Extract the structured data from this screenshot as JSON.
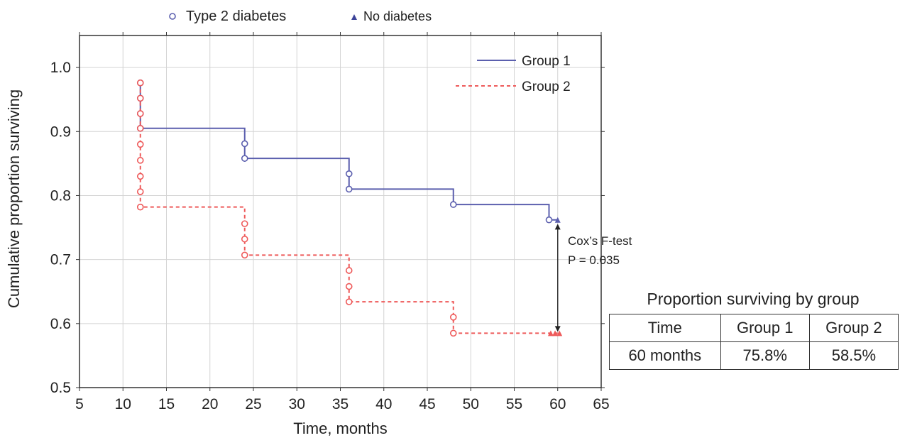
{
  "chart_data": {
    "type": "line",
    "subtype": "kaplan-meier step",
    "xlabel": "Time, months",
    "ylabel": "Cumulative proportion surviving",
    "xlim": [
      5,
      65
    ],
    "ylim": [
      0.5,
      1.05
    ],
    "xticks": [
      "5",
      "10",
      "15",
      "20",
      "25",
      "30",
      "35",
      "40",
      "45",
      "50",
      "55",
      "60",
      "65"
    ],
    "yticks": [
      "0.5",
      "0.6",
      "0.7",
      "0.8",
      "0.9",
      "1.0"
    ],
    "grid": true,
    "series": [
      {
        "name": "Group 1",
        "color": "#5b5fae",
        "style": "solid",
        "steps": [
          [
            12,
            0.905
          ],
          [
            24,
            0.858
          ],
          [
            36,
            0.81
          ],
          [
            48,
            0.786
          ],
          [
            59,
            0.762
          ],
          [
            60,
            0.758
          ]
        ],
        "markers_type2": [
          [
            12,
            0.976
          ],
          [
            12,
            0.952
          ],
          [
            12,
            0.928
          ],
          [
            12,
            0.905
          ],
          [
            24,
            0.881
          ],
          [
            24,
            0.858
          ],
          [
            36,
            0.834
          ],
          [
            36,
            0.81
          ],
          [
            48,
            0.786
          ],
          [
            59,
            0.762
          ]
        ],
        "markers_nodiab": [
          [
            60,
            0.762
          ]
        ]
      },
      {
        "name": "Group 2",
        "color": "#ee5a5a",
        "style": "dashed",
        "steps": [
          [
            12,
            0.782
          ],
          [
            24,
            0.707
          ],
          [
            36,
            0.634
          ],
          [
            48,
            0.585
          ],
          [
            60,
            0.585
          ]
        ],
        "markers_type2": [
          [
            12,
            0.976
          ],
          [
            12,
            0.952
          ],
          [
            12,
            0.928
          ],
          [
            12,
            0.905
          ],
          [
            12,
            0.88
          ],
          [
            12,
            0.855
          ],
          [
            12,
            0.83
          ],
          [
            12,
            0.806
          ],
          [
            12,
            0.782
          ],
          [
            24,
            0.756
          ],
          [
            24,
            0.732
          ],
          [
            24,
            0.707
          ],
          [
            36,
            0.683
          ],
          [
            36,
            0.658
          ],
          [
            36,
            0.634
          ],
          [
            48,
            0.61
          ],
          [
            48,
            0.585
          ]
        ],
        "markers_nodiab": [
          [
            59.2,
            0.585
          ],
          [
            59.7,
            0.585
          ],
          [
            60.2,
            0.585
          ]
        ]
      }
    ],
    "legend": {
      "placement": "top-right",
      "items": [
        "Group 1",
        "Group 2"
      ]
    },
    "marker_legend": {
      "placement": "top",
      "type2": "Type 2 diabetes",
      "nodiab": "No diabetes"
    },
    "annotation": {
      "line1": "Cox’s F-test",
      "line2": "P = 0.035",
      "x": 60,
      "from": 0.758,
      "to": 0.585
    }
  },
  "table": {
    "caption": "Proportion surviving by group",
    "headers": [
      "Time",
      "Group 1",
      "Group 2"
    ],
    "rows": [
      [
        "60 months",
        "75.8%",
        "58.5%"
      ]
    ]
  }
}
